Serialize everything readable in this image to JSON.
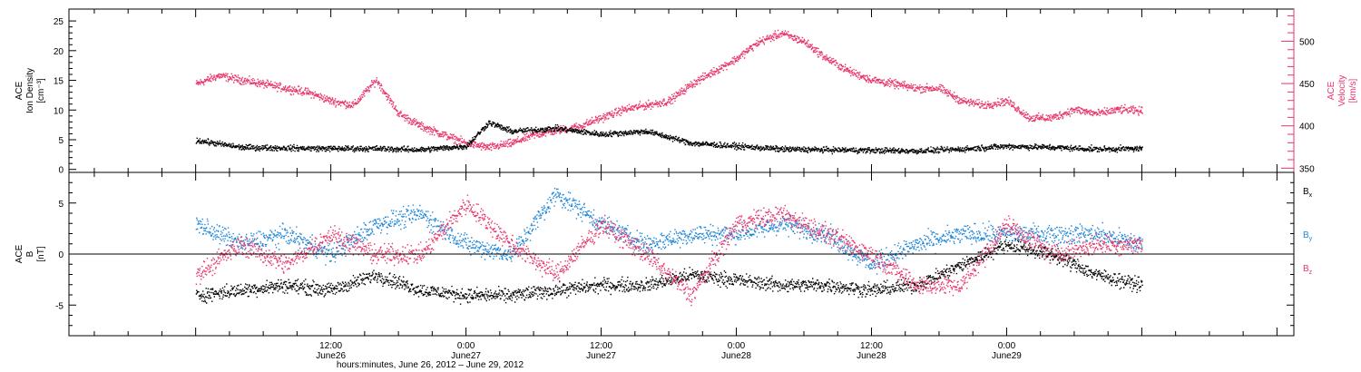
{
  "chart_data": [
    {
      "type": "scatter",
      "panel": "ion-density-velocity",
      "ylabel_lines": [
        "ACE",
        "Ion Density",
        "[cm⁻³]"
      ],
      "y2label_lines": [
        "ACE",
        "Velocity",
        "[km/s]"
      ],
      "yticks": [
        "0",
        "5",
        "10",
        "15",
        "20",
        "25"
      ],
      "ylim": [
        -0.5,
        27
      ],
      "y2ticks": [
        "350",
        "400",
        "450",
        "500"
      ],
      "y2lim": [
        345,
        538
      ],
      "colors": {
        "density": "#000000",
        "velocity": "#e8356a"
      },
      "series": [
        {
          "axis": "left",
          "color": "#000000",
          "hours": [
            0,
            4,
            8,
            12,
            16,
            20,
            24,
            26,
            28,
            32,
            36,
            40,
            44,
            48,
            52,
            56,
            60,
            64,
            68,
            72,
            76,
            80,
            84
          ],
          "values": [
            5,
            3.8,
            3.7,
            3.6,
            3.6,
            3.4,
            4,
            8,
            6.5,
            7,
            6,
            6.5,
            4.5,
            4,
            3.5,
            3.4,
            3.3,
            3.2,
            3.5,
            4,
            3.8,
            3.5,
            3.6
          ]
        },
        {
          "axis": "right",
          "color": "#e8356a",
          "hours": [
            0,
            2,
            4,
            6,
            8,
            10,
            12,
            14,
            16,
            18,
            20,
            22,
            24,
            26,
            28,
            30,
            32,
            34,
            36,
            38,
            40,
            42,
            44,
            46,
            48,
            50,
            52,
            54,
            56,
            58,
            60,
            62,
            64,
            66,
            68,
            70,
            72,
            74,
            76,
            78,
            80,
            82,
            84
          ],
          "values": [
            450,
            460,
            455,
            450,
            445,
            440,
            430,
            425,
            455,
            415,
            400,
            390,
            380,
            375,
            380,
            390,
            395,
            400,
            410,
            420,
            425,
            430,
            450,
            465,
            480,
            500,
            510,
            500,
            480,
            465,
            455,
            450,
            445,
            445,
            430,
            425,
            430,
            410,
            410,
            420,
            415,
            420,
            418
          ]
        }
      ]
    },
    {
      "type": "scatter",
      "panel": "magnetic-field",
      "ylabel_lines": [
        "ACE",
        "B",
        "[nT]"
      ],
      "yticks": [
        "-5",
        "0",
        "5"
      ],
      "ylim": [
        -8,
        8
      ],
      "zero_line": true,
      "series": [
        {
          "name": "Bx",
          "color": "#000000",
          "hours": [
            0,
            4,
            8,
            12,
            16,
            20,
            24,
            28,
            32,
            36,
            40,
            44,
            48,
            52,
            56,
            60,
            64,
            68,
            72,
            76,
            80,
            84
          ],
          "values": [
            -4,
            -3.5,
            -3,
            -3.5,
            -2,
            -3.5,
            -4,
            -4,
            -3.5,
            -3,
            -3,
            -2,
            -2.5,
            -3,
            -3,
            -3.5,
            -3,
            -1,
            1,
            0,
            -2,
            -3
          ]
        },
        {
          "name": "By",
          "color": "#1e86d8",
          "hours": [
            0,
            4,
            8,
            12,
            16,
            20,
            24,
            28,
            32,
            36,
            40,
            44,
            48,
            52,
            56,
            60,
            64,
            68,
            72,
            76,
            80,
            84
          ],
          "values": [
            3,
            1,
            2,
            0,
            3,
            4,
            1,
            0,
            6,
            3,
            1,
            2,
            2,
            3,
            2,
            -1,
            1,
            2,
            2,
            2,
            2,
            1
          ]
        },
        {
          "name": "Bz",
          "color": "#e8356a",
          "hours": [
            0,
            4,
            8,
            12,
            16,
            20,
            24,
            28,
            32,
            36,
            40,
            44,
            48,
            52,
            56,
            60,
            64,
            68,
            72,
            76,
            80,
            84
          ],
          "values": [
            -2,
            1,
            -1,
            2,
            0,
            0,
            5,
            1,
            -2,
            3,
            0,
            -4,
            3,
            4,
            2,
            0,
            -3,
            -3,
            3,
            0,
            1,
            1
          ]
        }
      ],
      "legend": [
        {
          "main": "B",
          "sub": "x",
          "color": "#000000"
        },
        {
          "main": "B",
          "sub": "y",
          "color": "#1e86d8"
        },
        {
          "main": "B",
          "sub": "z",
          "color": "#e8356a"
        }
      ]
    }
  ],
  "x_axis": {
    "xlim_hours": [
      -11.25,
      97.5
    ],
    "ticks": [
      {
        "hour": 12,
        "time": "12:00",
        "date": "June26"
      },
      {
        "hour": 24,
        "time": "0:00",
        "date": "June27"
      },
      {
        "hour": 36,
        "time": "12:00",
        "date": "June27"
      },
      {
        "hour": 48,
        "time": "0:00",
        "date": "June28"
      },
      {
        "hour": 60,
        "time": "12:00",
        "date": "June28"
      },
      {
        "hour": 72,
        "time": "0:00",
        "date": "June29"
      }
    ],
    "xlabel": "hours:minutes, June 26, 2012 – June 29, 2012"
  }
}
